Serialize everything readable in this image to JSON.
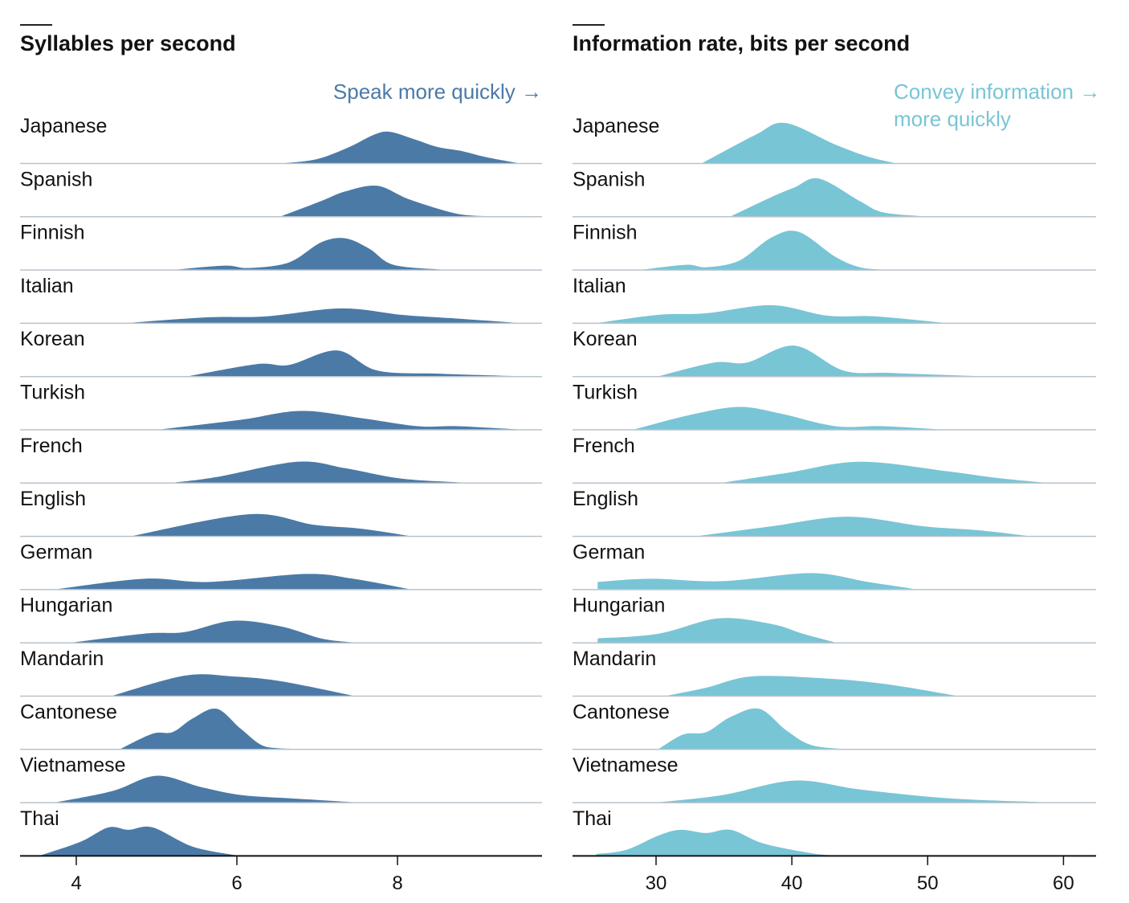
{
  "chart_data": [
    {
      "type": "ridgeline",
      "title": "Syllables per second",
      "annotation": [
        "Speak more quickly →"
      ],
      "color": "#4b7aa7",
      "xlim": [
        3.3,
        9.8
      ],
      "xticks": [
        4,
        6,
        8
      ],
      "grid": false,
      "density_units": "relative",
      "series": [
        {
          "name": "Japanese",
          "points": [
            [
              6.6,
              0
            ],
            [
              7.0,
              0.1
            ],
            [
              7.4,
              0.4
            ],
            [
              7.7,
              0.7
            ],
            [
              7.9,
              0.78
            ],
            [
              8.2,
              0.6
            ],
            [
              8.5,
              0.4
            ],
            [
              8.8,
              0.3
            ],
            [
              9.1,
              0.15
            ],
            [
              9.5,
              0
            ]
          ]
        },
        {
          "name": "Spanish",
          "points": [
            [
              6.55,
              0
            ],
            [
              7.05,
              0.38
            ],
            [
              7.35,
              0.62
            ],
            [
              7.75,
              0.76
            ],
            [
              8.15,
              0.42
            ],
            [
              8.75,
              0.06
            ],
            [
              9.15,
              0
            ]
          ]
        },
        {
          "name": "Finnish",
          "points": [
            [
              5.25,
              0
            ],
            [
              5.85,
              0.1
            ],
            [
              6.15,
              0.04
            ],
            [
              6.65,
              0.18
            ],
            [
              7.05,
              0.68
            ],
            [
              7.35,
              0.78
            ],
            [
              7.65,
              0.52
            ],
            [
              7.95,
              0.12
            ],
            [
              8.55,
              0
            ]
          ]
        },
        {
          "name": "Italian",
          "points": [
            [
              4.65,
              0
            ],
            [
              5.65,
              0.14
            ],
            [
              6.35,
              0.16
            ],
            [
              7.3,
              0.36
            ],
            [
              8.05,
              0.2
            ],
            [
              8.65,
              0.12
            ],
            [
              9.5,
              0
            ]
          ]
        },
        {
          "name": "Korean",
          "points": [
            [
              5.4,
              0
            ],
            [
              6.25,
              0.3
            ],
            [
              6.65,
              0.28
            ],
            [
              7.25,
              0.64
            ],
            [
              7.75,
              0.14
            ],
            [
              8.55,
              0.06
            ],
            [
              9.5,
              0
            ]
          ]
        },
        {
          "name": "Turkish",
          "points": [
            [
              5.05,
              0
            ],
            [
              6.05,
              0.24
            ],
            [
              6.8,
              0.46
            ],
            [
              7.55,
              0.28
            ],
            [
              8.25,
              0.08
            ],
            [
              8.75,
              0.08
            ],
            [
              9.5,
              0
            ]
          ]
        },
        {
          "name": "French",
          "points": [
            [
              5.2,
              0
            ],
            [
              5.75,
              0.14
            ],
            [
              6.75,
              0.52
            ],
            [
              7.35,
              0.36
            ],
            [
              8.05,
              0.1
            ],
            [
              8.85,
              0
            ]
          ]
        },
        {
          "name": "English",
          "points": [
            [
              4.7,
              0
            ],
            [
              6.15,
              0.54
            ],
            [
              6.95,
              0.28
            ],
            [
              7.55,
              0.18
            ],
            [
              8.15,
              0
            ]
          ]
        },
        {
          "name": "German",
          "points": [
            [
              3.75,
              0
            ],
            [
              4.85,
              0.26
            ],
            [
              5.65,
              0.18
            ],
            [
              6.85,
              0.38
            ],
            [
              7.45,
              0.26
            ],
            [
              8.15,
              0
            ]
          ]
        },
        {
          "name": "Hungarian",
          "points": [
            [
              3.95,
              0
            ],
            [
              4.85,
              0.22
            ],
            [
              5.35,
              0.26
            ],
            [
              5.95,
              0.54
            ],
            [
              6.55,
              0.4
            ],
            [
              7.05,
              0.1
            ],
            [
              7.45,
              0
            ]
          ]
        },
        {
          "name": "Mandarin",
          "points": [
            [
              4.45,
              0
            ],
            [
              5.35,
              0.5
            ],
            [
              5.95,
              0.48
            ],
            [
              6.55,
              0.36
            ],
            [
              7.45,
              0
            ]
          ]
        },
        {
          "name": "Cantonese",
          "points": [
            [
              4.55,
              0
            ],
            [
              4.95,
              0.38
            ],
            [
              5.2,
              0.42
            ],
            [
              5.45,
              0.76
            ],
            [
              5.75,
              1.0
            ],
            [
              6.05,
              0.5
            ],
            [
              6.35,
              0.06
            ],
            [
              6.75,
              0
            ]
          ]
        },
        {
          "name": "Vietnamese",
          "points": [
            [
              3.75,
              0
            ],
            [
              4.45,
              0.28
            ],
            [
              5.0,
              0.66
            ],
            [
              5.55,
              0.38
            ],
            [
              6.05,
              0.18
            ],
            [
              6.65,
              0.1
            ],
            [
              7.45,
              0
            ]
          ]
        },
        {
          "name": "Thai",
          "points": [
            [
              3.55,
              0
            ],
            [
              4.05,
              0.34
            ],
            [
              4.4,
              0.7
            ],
            [
              4.65,
              0.64
            ],
            [
              4.95,
              0.7
            ],
            [
              5.45,
              0.22
            ],
            [
              6.0,
              0
            ]
          ]
        }
      ]
    },
    {
      "type": "ridgeline",
      "title": "Information rate, bits per second",
      "annotation": [
        "Convey information →",
        "more quickly"
      ],
      "color": "#78c5d6",
      "xlim": [
        23.85,
        62.4
      ],
      "xticks": [
        30,
        40,
        50,
        60
      ],
      "grid": false,
      "density_units": "relative",
      "series": [
        {
          "name": "Japanese",
          "points": [
            [
              33.4,
              0
            ],
            [
              37.3,
              0.7
            ],
            [
              39.5,
              1.0
            ],
            [
              43.2,
              0.46
            ],
            [
              45.6,
              0.16
            ],
            [
              47.6,
              0
            ]
          ]
        },
        {
          "name": "Spanish",
          "points": [
            [
              35.5,
              0
            ],
            [
              38.5,
              0.48
            ],
            [
              40.2,
              0.72
            ],
            [
              42.0,
              0.94
            ],
            [
              45.0,
              0.38
            ],
            [
              46.7,
              0.1
            ],
            [
              49.7,
              0
            ]
          ]
        },
        {
          "name": "Finnish",
          "points": [
            [
              29.0,
              0
            ],
            [
              32.2,
              0.12
            ],
            [
              33.7,
              0.06
            ],
            [
              36.1,
              0.22
            ],
            [
              38.5,
              0.8
            ],
            [
              40.5,
              0.94
            ],
            [
              43.2,
              0.32
            ],
            [
              45.0,
              0.06
            ],
            [
              46.7,
              0
            ]
          ]
        },
        {
          "name": "Italian",
          "points": [
            [
              25.7,
              0
            ],
            [
              30.2,
              0.2
            ],
            [
              33.7,
              0.24
            ],
            [
              38.5,
              0.44
            ],
            [
              42.6,
              0.18
            ],
            [
              46.2,
              0.16
            ],
            [
              51.2,
              0
            ]
          ]
        },
        {
          "name": "Korean",
          "points": [
            [
              30.2,
              0
            ],
            [
              34.3,
              0.34
            ],
            [
              36.7,
              0.34
            ],
            [
              40.2,
              0.76
            ],
            [
              43.8,
              0.14
            ],
            [
              47.3,
              0.08
            ],
            [
              53.8,
              0
            ]
          ]
        },
        {
          "name": "Turkish",
          "points": [
            [
              28.4,
              0
            ],
            [
              32.5,
              0.36
            ],
            [
              36.1,
              0.56
            ],
            [
              39.1,
              0.4
            ],
            [
              43.2,
              0.08
            ],
            [
              46.7,
              0.08
            ],
            [
              50.9,
              0
            ]
          ]
        },
        {
          "name": "French",
          "points": [
            [
              34.9,
              0
            ],
            [
              39.6,
              0.24
            ],
            [
              45.0,
              0.52
            ],
            [
              51.5,
              0.28
            ],
            [
              55.0,
              0.12
            ],
            [
              58.6,
              0
            ]
          ]
        },
        {
          "name": "English",
          "points": [
            [
              33.1,
              0
            ],
            [
              38.5,
              0.24
            ],
            [
              44.1,
              0.48
            ],
            [
              49.7,
              0.24
            ],
            [
              53.8,
              0.14
            ],
            [
              57.4,
              0
            ]
          ]
        },
        {
          "name": "German",
          "points": [
            [
              25.7,
              0.18
            ],
            [
              29.6,
              0.26
            ],
            [
              34.9,
              0.2
            ],
            [
              41.4,
              0.4
            ],
            [
              45.6,
              0.18
            ],
            [
              49.1,
              0
            ]
          ]
        },
        {
          "name": "Hungarian",
          "points": [
            [
              25.7,
              0.1
            ],
            [
              30.2,
              0.22
            ],
            [
              34.6,
              0.6
            ],
            [
              38.5,
              0.46
            ],
            [
              40.8,
              0.22
            ],
            [
              43.2,
              0
            ]
          ]
        },
        {
          "name": "Mandarin",
          "points": [
            [
              30.8,
              0
            ],
            [
              33.7,
              0.2
            ],
            [
              37.0,
              0.48
            ],
            [
              42.0,
              0.44
            ],
            [
              46.7,
              0.3
            ],
            [
              52.1,
              0
            ]
          ]
        },
        {
          "name": "Cantonese",
          "points": [
            [
              30.2,
              0
            ],
            [
              32.0,
              0.36
            ],
            [
              33.7,
              0.42
            ],
            [
              35.5,
              0.8
            ],
            [
              37.6,
              1.0
            ],
            [
              39.6,
              0.46
            ],
            [
              41.4,
              0.1
            ],
            [
              43.8,
              0
            ]
          ]
        },
        {
          "name": "Vietnamese",
          "points": [
            [
              30.2,
              0
            ],
            [
              34.9,
              0.18
            ],
            [
              40.2,
              0.54
            ],
            [
              45.0,
              0.32
            ],
            [
              51.5,
              0.1
            ],
            [
              58.6,
              0
            ]
          ]
        },
        {
          "name": "Thai",
          "points": [
            [
              25.6,
              0.04
            ],
            [
              27.8,
              0.14
            ],
            [
              30.2,
              0.5
            ],
            [
              31.8,
              0.64
            ],
            [
              33.7,
              0.56
            ],
            [
              35.5,
              0.64
            ],
            [
              37.9,
              0.3
            ],
            [
              41.4,
              0.06
            ],
            [
              43.2,
              0
            ]
          ]
        }
      ]
    }
  ]
}
